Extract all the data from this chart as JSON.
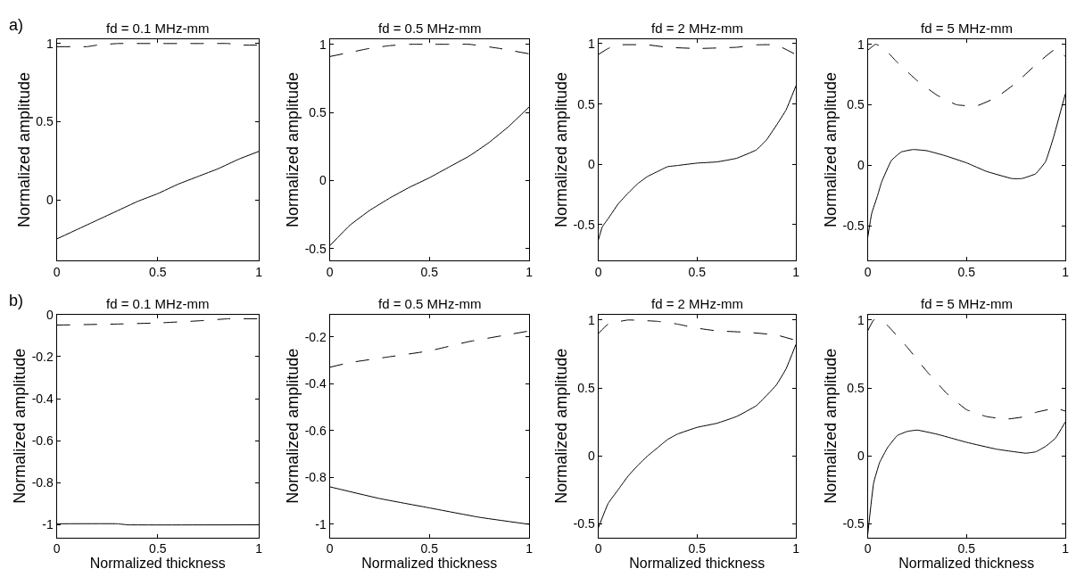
{
  "chart_data": [
    {
      "type": "line",
      "title": "fd = 0.1 MHz-mm",
      "ylabel": "Normalized amplitude",
      "annotations": [
        "a)"
      ],
      "xlim": [
        0,
        1
      ],
      "xticks": [
        0,
        0.5,
        1
      ],
      "ylim": [
        -0.39,
        1.03
      ],
      "yticks": [
        0,
        0.5,
        1
      ],
      "series": [
        {
          "color": "#000000",
          "line_style": "dashed",
          "x": [
            0,
            0.1,
            0.15,
            0.2,
            0.3,
            0.5,
            0.7,
            0.85,
            0.9,
            1
          ],
          "values": [
            0.98,
            0.98,
            0.98,
            0.99,
            1.0,
            1.0,
            1.0,
            1.0,
            0.99,
            0.99
          ]
        },
        {
          "color": "#000000",
          "line_style": "solid",
          "x": [
            0,
            0.1,
            0.2,
            0.3,
            0.4,
            0.5,
            0.6,
            0.7,
            0.8,
            0.9,
            1
          ],
          "values": [
            -0.25,
            -0.19,
            -0.13,
            -0.07,
            -0.01,
            0.04,
            0.1,
            0.15,
            0.2,
            0.26,
            0.31
          ]
        }
      ]
    },
    {
      "type": "line",
      "title": "fd = 0.5 MHz-mm",
      "ylabel": "Normalized amplitude",
      "xlim": [
        0,
        1
      ],
      "xticks": [
        0,
        0.5,
        1
      ],
      "ylim": [
        -0.59,
        1.04
      ],
      "yticks": [
        -0.5,
        0,
        0.5,
        1
      ],
      "series": [
        {
          "color": "#000000",
          "line_style": "dashed",
          "x": [
            0,
            0.1,
            0.2,
            0.3,
            0.4,
            0.5,
            0.6,
            0.7,
            0.85,
            1
          ],
          "values": [
            0.91,
            0.94,
            0.97,
            0.99,
            1.0,
            1.0,
            1.0,
            1.0,
            0.97,
            0.93
          ]
        },
        {
          "color": "#000000",
          "line_style": "solid",
          "x": [
            0,
            0.1,
            0.2,
            0.3,
            0.4,
            0.5,
            0.6,
            0.7,
            0.8,
            0.9,
            1
          ],
          "values": [
            -0.48,
            -0.33,
            -0.22,
            -0.13,
            -0.05,
            0.02,
            0.1,
            0.18,
            0.28,
            0.4,
            0.54
          ]
        }
      ]
    },
    {
      "type": "line",
      "title": "fd = 2 MHz-mm",
      "ylabel": "Normalized amplitude",
      "xlim": [
        0,
        1
      ],
      "xticks": [
        0,
        0.5,
        1
      ],
      "ylim": [
        -0.8,
        1.04
      ],
      "yticks": [
        -0.5,
        0,
        0.5,
        1
      ],
      "series": [
        {
          "color": "#000000",
          "line_style": "dashed",
          "x": [
            0,
            0.05,
            0.1,
            0.25,
            0.35,
            0.5,
            0.7,
            0.8,
            0.9,
            1
          ],
          "values": [
            0.91,
            0.96,
            0.99,
            0.99,
            0.97,
            0.96,
            0.97,
            0.99,
            0.99,
            0.91
          ]
        },
        {
          "color": "#000000",
          "line_style": "solid",
          "x": [
            0,
            0.02,
            0.05,
            0.1,
            0.15,
            0.2,
            0.25,
            0.3,
            0.35,
            0.4,
            0.5,
            0.6,
            0.7,
            0.8,
            0.85,
            0.9,
            0.95,
            1
          ],
          "values": [
            -0.63,
            -0.52,
            -0.45,
            -0.33,
            -0.24,
            -0.16,
            -0.1,
            -0.06,
            -0.02,
            -0.01,
            0.01,
            0.02,
            0.05,
            0.12,
            0.2,
            0.32,
            0.45,
            0.65
          ]
        }
      ]
    },
    {
      "type": "line",
      "title": "fd = 5 MHz-mm",
      "ylabel": "Normalized amplitude",
      "xlim": [
        0,
        1
      ],
      "xticks": [
        0,
        0.5,
        1
      ],
      "ylim": [
        -0.79,
        1.045
      ],
      "yticks": [
        -0.5,
        0,
        0.5,
        1
      ],
      "series": [
        {
          "color": "#000000",
          "line_style": "dashed",
          "x": [
            0,
            0.04,
            0.08,
            0.15,
            0.25,
            0.35,
            0.45,
            0.55,
            0.65,
            0.75,
            0.85,
            0.95,
            1
          ],
          "values": [
            0.95,
            1.0,
            0.97,
            0.85,
            0.7,
            0.58,
            0.5,
            0.49,
            0.56,
            0.68,
            0.83,
            0.96,
            0.9
          ]
        },
        {
          "color": "#000000",
          "line_style": "solid",
          "x": [
            0,
            0.02,
            0.05,
            0.07,
            0.12,
            0.17,
            0.23,
            0.3,
            0.39,
            0.5,
            0.6,
            0.73,
            0.78,
            0.85,
            0.9,
            0.94,
            1
          ],
          "values": [
            -0.6,
            -0.4,
            -0.25,
            -0.14,
            0.04,
            0.11,
            0.13,
            0.12,
            0.08,
            0.02,
            -0.05,
            -0.11,
            -0.11,
            -0.07,
            0.03,
            0.23,
            0.59
          ]
        }
      ]
    },
    {
      "type": "line",
      "title": "fd = 0.1 MHz-mm",
      "xlabel": "Normalized thickness",
      "ylabel": "Normalized amplitude",
      "annotations": [
        "b)"
      ],
      "xlim": [
        0,
        1
      ],
      "xticks": [
        0,
        0.5,
        1
      ],
      "ylim": [
        -1.06,
        0
      ],
      "yticks": [
        -1,
        -0.8,
        -0.6,
        -0.4,
        -0.2,
        0
      ],
      "series": [
        {
          "color": "#000000",
          "line_style": "dashed",
          "x": [
            0,
            0.3,
            0.5,
            0.7,
            0.85,
            1
          ],
          "values": [
            -0.05,
            -0.045,
            -0.04,
            -0.03,
            -0.02,
            -0.02
          ]
        },
        {
          "color": "#000000",
          "line_style": "solid",
          "x": [
            0,
            0.3,
            0.35,
            1
          ],
          "values": [
            -0.995,
            -0.995,
            -1.0,
            -1.0
          ]
        }
      ]
    },
    {
      "type": "line",
      "title": "fd = 0.5 MHz-mm",
      "xlabel": "Normalized thickness",
      "ylabel": "Normalized amplitude",
      "xlim": [
        0,
        1
      ],
      "xticks": [
        0,
        0.5,
        1
      ],
      "ylim": [
        -1.056,
        -0.105
      ],
      "yticks": [
        -1,
        -0.8,
        -0.6,
        -0.4,
        -0.2
      ],
      "series": [
        {
          "color": "#000000",
          "line_style": "dashed",
          "x": [
            0,
            0.1,
            0.3,
            0.5,
            0.7,
            0.9,
            1
          ],
          "values": [
            -0.33,
            -0.31,
            -0.285,
            -0.26,
            -0.22,
            -0.19,
            -0.175
          ]
        },
        {
          "color": "#000000",
          "line_style": "solid",
          "x": [
            0,
            0.25,
            0.5,
            0.75,
            1
          ],
          "values": [
            -0.84,
            -0.89,
            -0.93,
            -0.97,
            -1.0
          ]
        }
      ]
    },
    {
      "type": "line",
      "title": "fd = 2 MHz-mm",
      "xlabel": "Normalized thickness",
      "ylabel": "Normalized amplitude",
      "xlim": [
        0,
        1
      ],
      "xticks": [
        0,
        0.5,
        1
      ],
      "ylim": [
        -0.6,
        1.04
      ],
      "yticks": [
        -0.5,
        0,
        0.5,
        1
      ],
      "series": [
        {
          "color": "#000000",
          "line_style": "dashed",
          "x": [
            0,
            0.05,
            0.15,
            0.3,
            0.4,
            0.5,
            0.6,
            0.75,
            0.9,
            1
          ],
          "values": [
            0.9,
            0.97,
            1.0,
            0.99,
            0.97,
            0.94,
            0.92,
            0.91,
            0.89,
            0.85
          ]
        },
        {
          "color": "#000000",
          "line_style": "solid",
          "x": [
            0,
            0.05,
            0.1,
            0.15,
            0.2,
            0.25,
            0.3,
            0.35,
            0.4,
            0.5,
            0.6,
            0.7,
            0.8,
            0.9,
            0.95,
            1
          ],
          "values": [
            -0.53,
            -0.35,
            -0.25,
            -0.15,
            -0.07,
            0.0,
            0.06,
            0.12,
            0.16,
            0.21,
            0.24,
            0.29,
            0.37,
            0.52,
            0.64,
            0.82
          ]
        }
      ]
    },
    {
      "type": "line",
      "title": "fd = 5 MHz-mm",
      "xlabel": "Normalized thickness",
      "ylabel": "Normalized amplitude",
      "xlim": [
        0,
        1
      ],
      "xticks": [
        0,
        0.5,
        1
      ],
      "ylim": [
        -0.6,
        1.04
      ],
      "yticks": [
        -0.5,
        0,
        0.5,
        1
      ],
      "series": [
        {
          "color": "#000000",
          "line_style": "dashed",
          "x": [
            0,
            0.03,
            0.06,
            0.1,
            0.2,
            0.3,
            0.4,
            0.5,
            0.6,
            0.7,
            0.8,
            0.85,
            0.95,
            1
          ],
          "values": [
            0.92,
            1.0,
            1.0,
            0.96,
            0.8,
            0.62,
            0.46,
            0.34,
            0.29,
            0.27,
            0.29,
            0.32,
            0.35,
            0.33
          ]
        },
        {
          "color": "#000000",
          "line_style": "solid",
          "x": [
            0,
            0.03,
            0.06,
            0.1,
            0.15,
            0.2,
            0.25,
            0.35,
            0.5,
            0.65,
            0.8,
            0.85,
            0.9,
            0.95,
            1
          ],
          "values": [
            -0.58,
            -0.2,
            -0.05,
            0.06,
            0.15,
            0.18,
            0.19,
            0.16,
            0.1,
            0.05,
            0.02,
            0.03,
            0.07,
            0.13,
            0.25
          ]
        }
      ]
    }
  ]
}
